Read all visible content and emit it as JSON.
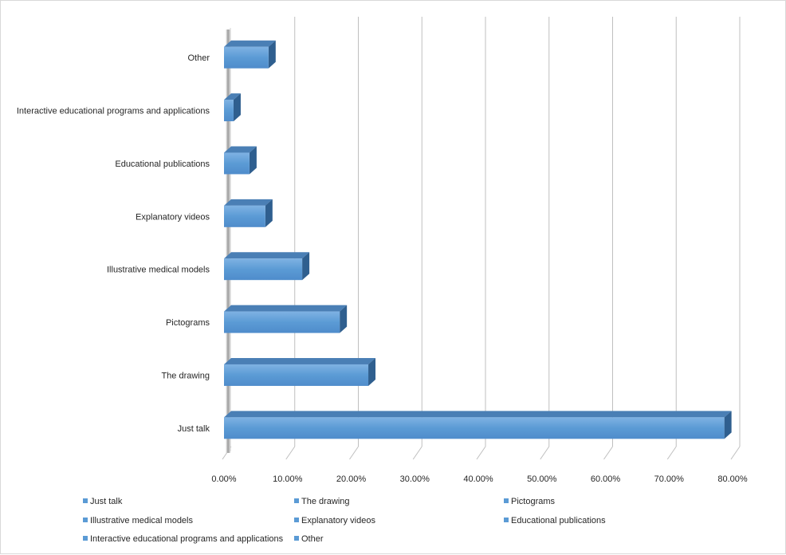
{
  "chart_data": {
    "type": "bar",
    "orientation": "horizontal",
    "style": "3d",
    "categories": [
      "Other",
      "Interactive educational programs and applications",
      "Educational publications",
      "Explanatory videos",
      "Illustrative medical models",
      "Pictograms",
      "The drawing",
      "Just talk"
    ],
    "values": [
      0.07,
      0.015,
      0.04,
      0.065,
      0.123,
      0.182,
      0.227,
      0.787
    ],
    "xlim": [
      0,
      0.8
    ],
    "xticks": [
      "0.00%",
      "10.00%",
      "20.00%",
      "30.00%",
      "40.00%",
      "50.00%",
      "60.00%",
      "70.00%",
      "80.00%"
    ],
    "grid": true,
    "legend_position": "bottom",
    "legend": [
      "Just talk",
      "The drawing",
      "Pictograms",
      "Illustrative medical models",
      "Explanatory videos",
      "Educational publications",
      "Interactive educational programs and applications",
      "Other"
    ],
    "colors": {
      "bar_front": "#5b9bd5",
      "bar_top": "#4a7fb5",
      "bar_side": "#2f5f8f",
      "grid": "#bfbfbf",
      "wall": "#7f7f7f"
    }
  }
}
